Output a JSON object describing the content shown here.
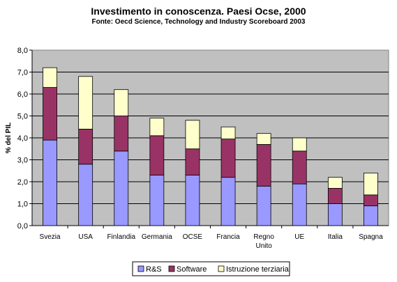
{
  "chart_data": {
    "type": "bar",
    "stacked": true,
    "title": "Investimento in conoscenza. Paesi Ocse, 2000",
    "subtitle": "Fonte: Oecd Science, Technology and Industry Scoreboard 2003",
    "xlabel": "",
    "ylabel": "% del PIL",
    "ylim": [
      0,
      8
    ],
    "yticks": [
      "0,0",
      "1,0",
      "2,0",
      "3,0",
      "4,0",
      "5,0",
      "6,0",
      "7,0",
      "8,0"
    ],
    "grid": true,
    "legend_position": "bottom",
    "categories": [
      [
        "Svezia"
      ],
      [
        "USA"
      ],
      [
        "Finlandia"
      ],
      [
        "Germania"
      ],
      [
        "OCSE"
      ],
      [
        "Francia"
      ],
      [
        "Regno",
        "Unito"
      ],
      [
        "UE"
      ],
      [
        "Italia"
      ],
      [
        "Spagna"
      ]
    ],
    "series": [
      {
        "name": "R&S",
        "color": "#9999ff",
        "values": [
          3.9,
          2.8,
          3.4,
          2.3,
          2.3,
          2.2,
          1.8,
          1.9,
          1.0,
          0.9
        ]
      },
      {
        "name": "Software",
        "color": "#993366",
        "values": [
          2.4,
          1.6,
          1.6,
          1.8,
          1.2,
          1.75,
          1.9,
          1.5,
          0.7,
          0.5
        ]
      },
      {
        "name": "Istruzione terziaria",
        "color": "#ffffcc",
        "values": [
          0.9,
          2.4,
          1.2,
          0.8,
          1.3,
          0.55,
          0.5,
          0.6,
          0.5,
          1.0
        ]
      }
    ],
    "plot_background": "#c0c0c0"
  }
}
